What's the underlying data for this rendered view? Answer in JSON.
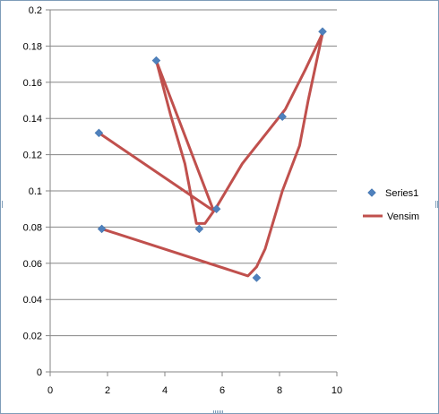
{
  "chart_data": {
    "type": "scatter",
    "title": "",
    "xlabel": "",
    "ylabel": "",
    "xlim": [
      0,
      10
    ],
    "ylim": [
      0,
      0.2
    ],
    "x_ticks": [
      "0",
      "2",
      "4",
      "6",
      "8",
      "10"
    ],
    "y_ticks": [
      "0",
      "0.02",
      "0.04",
      "0.06",
      "0.08",
      "0.1",
      "0.12",
      "0.14",
      "0.16",
      "0.18",
      "0.2"
    ],
    "grid": "horizontal major gridlines",
    "legend_position": "right",
    "series": [
      {
        "name": "Series1",
        "kind": "markers",
        "marker": "diamond",
        "color": "#4f81bd",
        "points": [
          [
            1.7,
            0.132
          ],
          [
            3.7,
            0.172
          ],
          [
            5.2,
            0.079
          ],
          [
            5.8,
            0.09
          ],
          [
            1.8,
            0.079
          ],
          [
            7.2,
            0.052
          ],
          [
            8.1,
            0.141
          ],
          [
            9.5,
            0.188
          ]
        ]
      },
      {
        "name": "Vensim",
        "kind": "line",
        "color": "#c0504d",
        "points": [
          [
            1.7,
            0.132
          ],
          [
            5.7,
            0.089
          ],
          [
            3.7,
            0.172
          ],
          [
            4.2,
            0.142
          ],
          [
            4.7,
            0.115
          ],
          [
            5.1,
            0.082
          ],
          [
            5.4,
            0.082
          ],
          [
            5.8,
            0.091
          ],
          [
            6.7,
            0.115
          ],
          [
            8.2,
            0.145
          ],
          [
            8.9,
            0.167
          ],
          [
            9.5,
            0.187
          ],
          [
            9.0,
            0.15
          ],
          [
            8.7,
            0.125
          ],
          [
            8.1,
            0.1
          ],
          [
            7.5,
            0.068
          ],
          [
            7.2,
            0.058
          ],
          [
            6.9,
            0.053
          ],
          [
            1.8,
            0.079
          ]
        ]
      }
    ]
  }
}
